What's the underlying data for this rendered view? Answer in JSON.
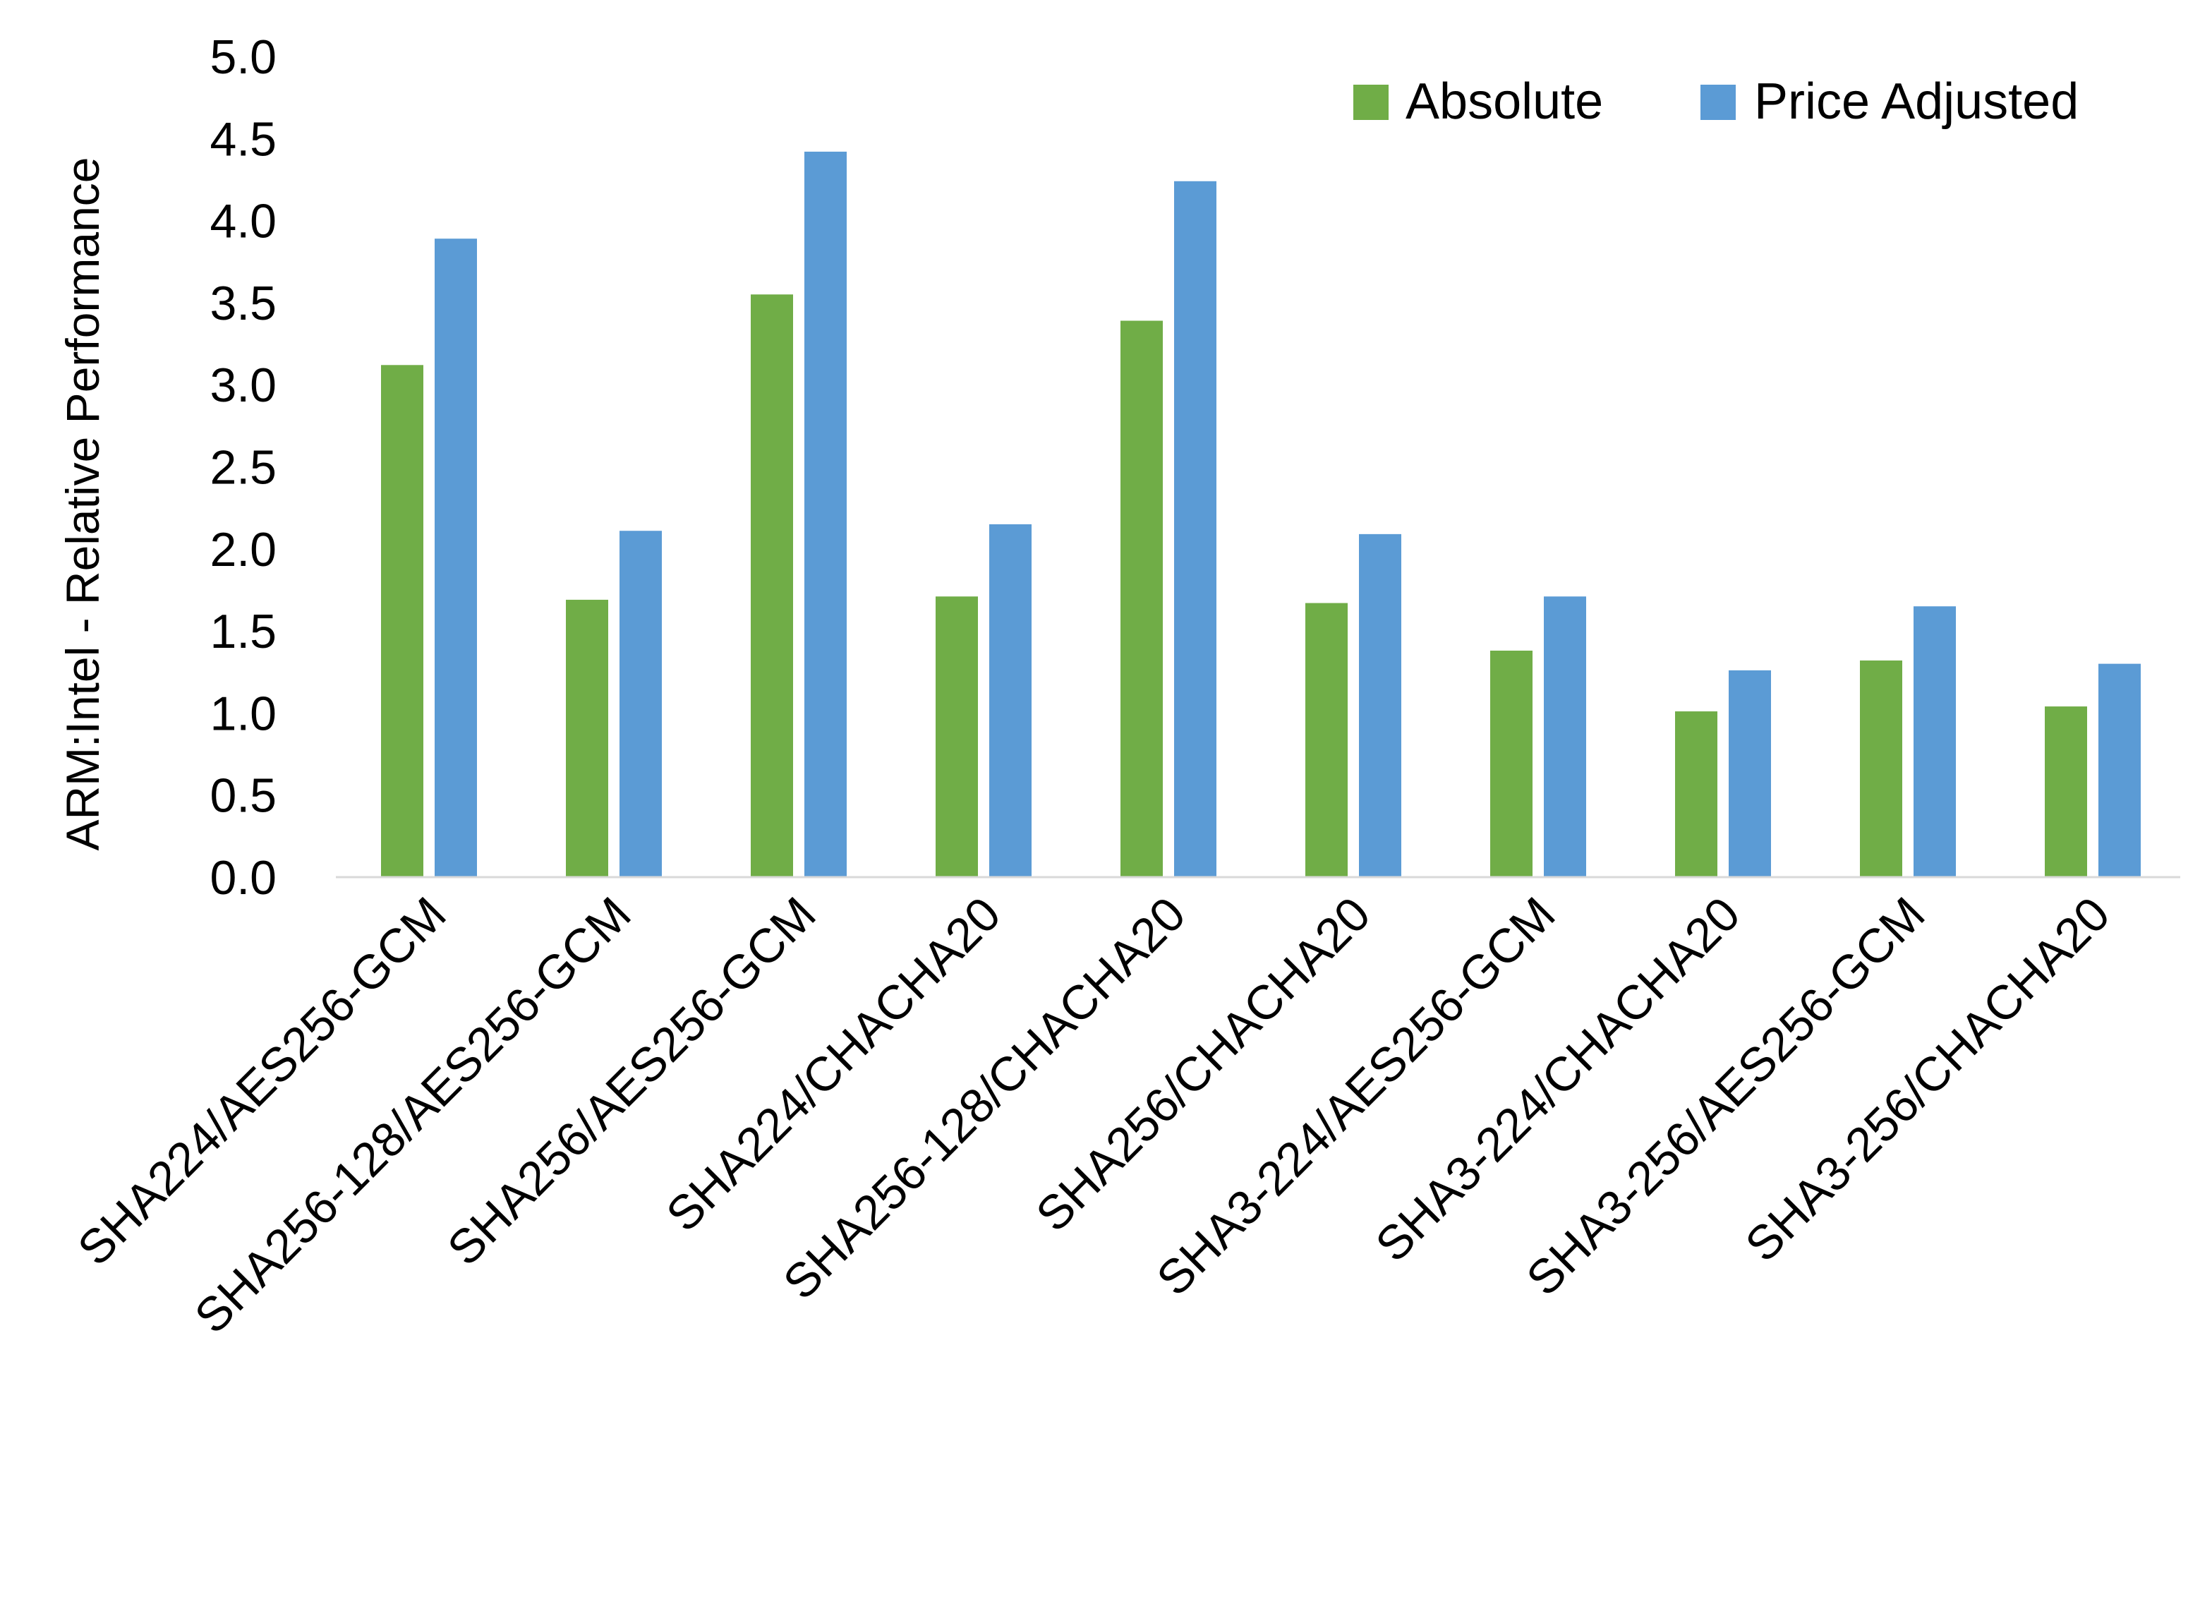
{
  "chart_data": {
    "type": "bar",
    "title": "",
    "xlabel": "",
    "ylabel": "ARM:Intel - Relative Performance",
    "ylim": [
      0,
      5
    ],
    "yticks": [
      "0.0",
      "0.5",
      "1.0",
      "1.5",
      "2.0",
      "2.5",
      "3.0",
      "3.5",
      "4.0",
      "4.5",
      "5.0"
    ],
    "grid": false,
    "legend_position": "top-right",
    "categories": [
      "SHA224/AES256-GCM",
      "SHA256-128/AES256-GCM",
      "SHA256/AES256-GCM",
      "SHA224/CHACHA20",
      "SHA256-128/CHACHA20",
      "SHA256/CHACHA20",
      "SHA3-224/AES256-GCM",
      "SHA3-224/CHACHA20",
      "SHA3-256/AES256-GCM",
      "SHA3-256/CHACHA20"
    ],
    "series": [
      {
        "name": "Absolute",
        "color": "#70AD47",
        "values": [
          3.12,
          1.69,
          3.55,
          1.71,
          3.39,
          1.67,
          1.38,
          1.01,
          1.32,
          1.04
        ]
      },
      {
        "name": "Price Adjusted",
        "color": "#5B9BD5",
        "values": [
          3.89,
          2.11,
          4.42,
          2.15,
          4.24,
          2.09,
          1.71,
          1.26,
          1.65,
          1.3
        ]
      }
    ]
  }
}
